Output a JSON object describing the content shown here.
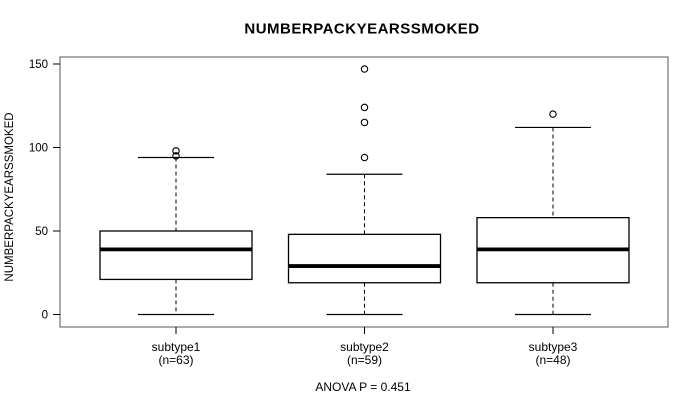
{
  "figure": {
    "background": "#ffffff"
  },
  "chart_data": {
    "type": "boxplot",
    "title": "NUMBERPACKYEARSSMOKED",
    "ylabel": "NUMBERPACKYEARSSMOKED",
    "xlabel": "",
    "footer_annotation": "ANOVA P = 0.451",
    "ylim": [
      0,
      150
    ],
    "y_ticks": [
      0,
      50,
      100,
      150
    ],
    "grid": false,
    "legend": "none",
    "categories": [
      "subtype1",
      "subtype2",
      "subtype3"
    ],
    "category_sublabels": [
      "(n=63)",
      "(n=59)",
      "(n=48)"
    ],
    "series": [
      {
        "name": "subtype1",
        "n": 63,
        "whisker_low": 0,
        "q1": 21,
        "median": 39,
        "q3": 50,
        "whisker_high": 94,
        "outliers": [
          95,
          98
        ]
      },
      {
        "name": "subtype2",
        "n": 59,
        "whisker_low": 0,
        "q1": 19,
        "median": 29,
        "q3": 48,
        "whisker_high": 84,
        "outliers": [
          94,
          115,
          124,
          147
        ]
      },
      {
        "name": "subtype3",
        "n": 48,
        "whisker_low": 0,
        "q1": 19,
        "median": 39,
        "q3": 58,
        "whisker_high": 112,
        "outliers": [
          120
        ]
      }
    ],
    "colors": {
      "box_fill": "#ffffff",
      "line": "#000000",
      "frame": "#555555",
      "text": "#000000"
    }
  }
}
